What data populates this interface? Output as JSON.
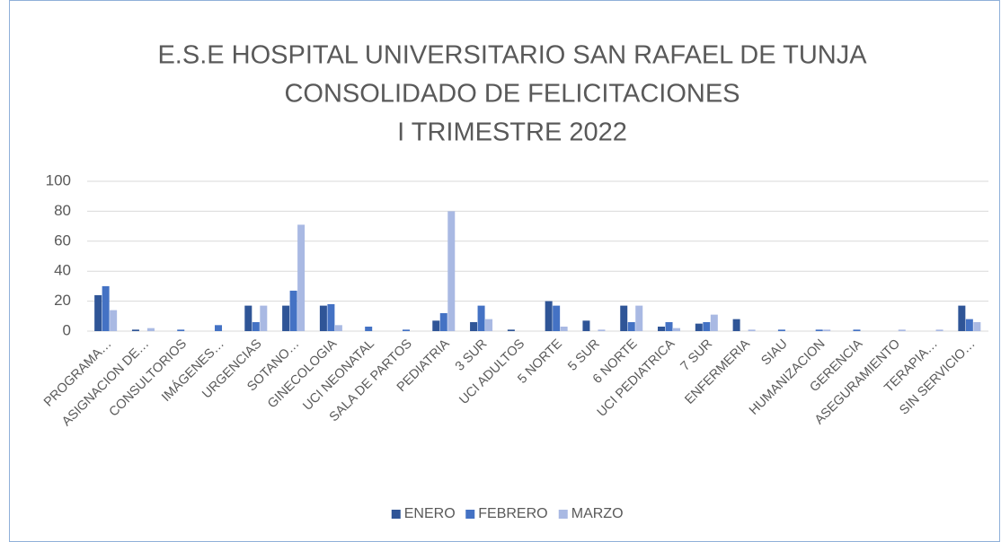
{
  "chart_data": {
    "type": "bar",
    "title": [
      "E.S.E HOSPITAL UNIVERSITARIO SAN RAFAEL DE TUNJA",
      "CONSOLIDADO DE FELICITACIONES",
      "I TRIMESTRE 2022"
    ],
    "categories": [
      "PROGRAMA…",
      "ASIGNACION DE…",
      "CONSULTORIOS",
      "IMÁGENES…",
      "URGENCIAS",
      "SOTANO…",
      "GINECOLOGIA",
      "UCI NEONATAL",
      "SALA DE PARTOS",
      "PEDIATRIA",
      "3 SUR",
      "UCI ADULTOS",
      "5 NORTE",
      "5 SUR",
      "6 NORTE",
      "UCI PEDIATRICA",
      "7 SUR",
      "ENFERMERIA",
      "SIAU",
      "HUMANIZACION",
      "GERENCIA",
      "ASEGURAMIENTO",
      "TERAPIA…",
      "SIN SERVICIO…"
    ],
    "series": [
      {
        "name": "ENERO",
        "color": "#2f5597",
        "values": [
          24,
          1,
          0,
          0,
          17,
          17,
          17,
          0,
          0,
          7,
          6,
          1,
          20,
          7,
          17,
          3,
          5,
          8,
          0,
          0,
          0,
          0,
          0,
          17
        ]
      },
      {
        "name": "FEBRERO",
        "color": "#4472c4",
        "values": [
          30,
          0,
          1,
          4,
          6,
          27,
          18,
          3,
          1,
          12,
          17,
          0,
          17,
          0,
          6,
          6,
          6,
          0,
          1,
          1,
          1,
          0,
          0,
          8
        ]
      },
      {
        "name": "MARZO",
        "color": "#a9b9e3",
        "values": [
          14,
          2,
          0,
          0,
          17,
          71,
          4,
          0,
          0,
          80,
          8,
          0,
          3,
          1,
          17,
          2,
          11,
          1,
          0,
          1,
          0,
          1,
          1,
          6
        ]
      }
    ],
    "ylim": [
      0,
      100
    ],
    "yticks": [
      0,
      20,
      40,
      60,
      80,
      100
    ],
    "grid": true,
    "legend": "bottom"
  }
}
